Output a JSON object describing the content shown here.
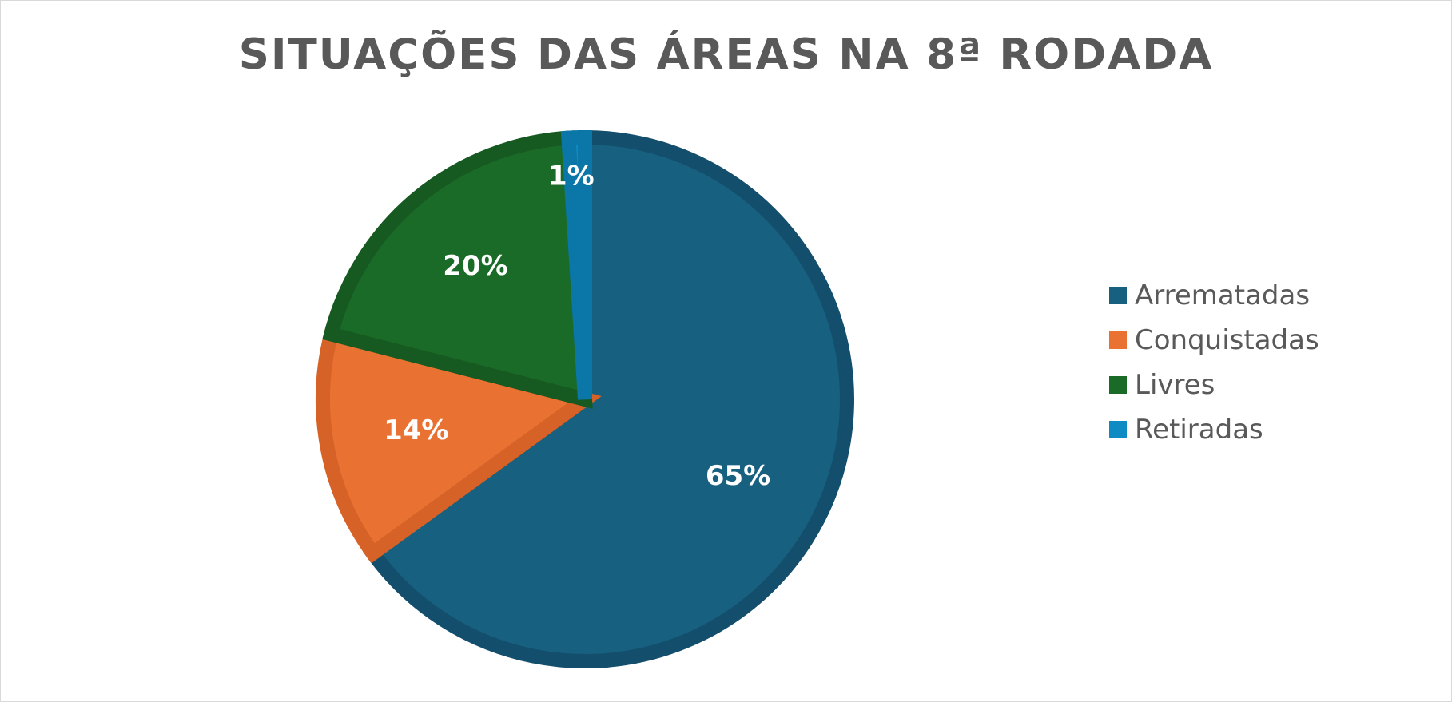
{
  "chart_data": {
    "type": "pie",
    "title": "SITUAÇÕES DAS ÁREAS NA 8ª RODADA",
    "categories": [
      "Arrematadas",
      "Conquistadas",
      "Livres",
      "Retiradas"
    ],
    "values": [
      65,
      14,
      20,
      1
    ],
    "data_labels": [
      "65%",
      "14%",
      "20%",
      "1%"
    ],
    "colors": [
      "#17607f",
      "#e97132",
      "#1b6b28",
      "#0f8bc4"
    ],
    "border_colors": [
      "#134f6c",
      "#d66228",
      "#165a21",
      "#0b77a8"
    ],
    "legend_position": "right",
    "legend": [
      {
        "label": "Arrematadas",
        "color": "#17607f"
      },
      {
        "label": "Conquistadas",
        "color": "#e97132"
      },
      {
        "label": "Livres",
        "color": "#1b6b28"
      },
      {
        "label": "Retiradas",
        "color": "#0f8bc4"
      }
    ]
  }
}
